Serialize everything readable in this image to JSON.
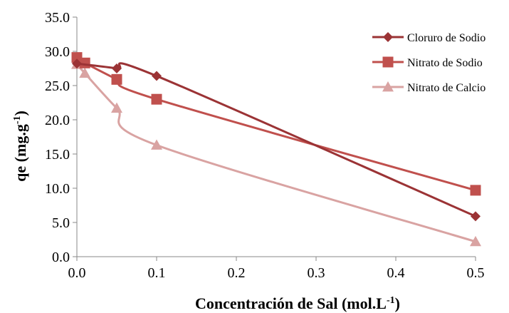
{
  "chart_data": {
    "type": "line",
    "xlabel_main": "Concentración de Sal (mol.L",
    "xlabel_sup": "-1",
    "xlabel_end": ")",
    "ylabel_main": "qe (mg.g",
    "ylabel_sup": "-1",
    "ylabel_end": ")",
    "xlim": [
      0,
      0.5
    ],
    "ylim": [
      0,
      35
    ],
    "x_ticks": [
      "0.0",
      "0.1",
      "0.2",
      "0.3",
      "0.4",
      "0.5"
    ],
    "y_ticks": [
      "0.0",
      "5.0",
      "10.0",
      "15.0",
      "20.0",
      "25.0",
      "30.0",
      "35.0"
    ],
    "grid": false,
    "legend_position": "top-right",
    "series": [
      {
        "name": "Cloruro de Sodio",
        "color": "#9b3335",
        "marker": "diamond",
        "x": [
          0,
          0.05,
          0.1,
          0.5
        ],
        "y": [
          28.2,
          27.5,
          26.4,
          5.9
        ]
      },
      {
        "name": "Nitrato de Sodio",
        "color": "#c0504d",
        "marker": "square",
        "x": [
          0,
          0.01,
          0.05,
          0.1,
          0.5
        ],
        "y": [
          29.1,
          28.3,
          25.9,
          23.0,
          9.7
        ]
      },
      {
        "name": "Nitrato de Calcio",
        "color": "#d9a3a2",
        "marker": "triangle",
        "x": [
          0,
          0.01,
          0.05,
          0.1,
          0.5
        ],
        "y": [
          28.1,
          26.8,
          21.7,
          16.3,
          2.2
        ]
      }
    ]
  }
}
